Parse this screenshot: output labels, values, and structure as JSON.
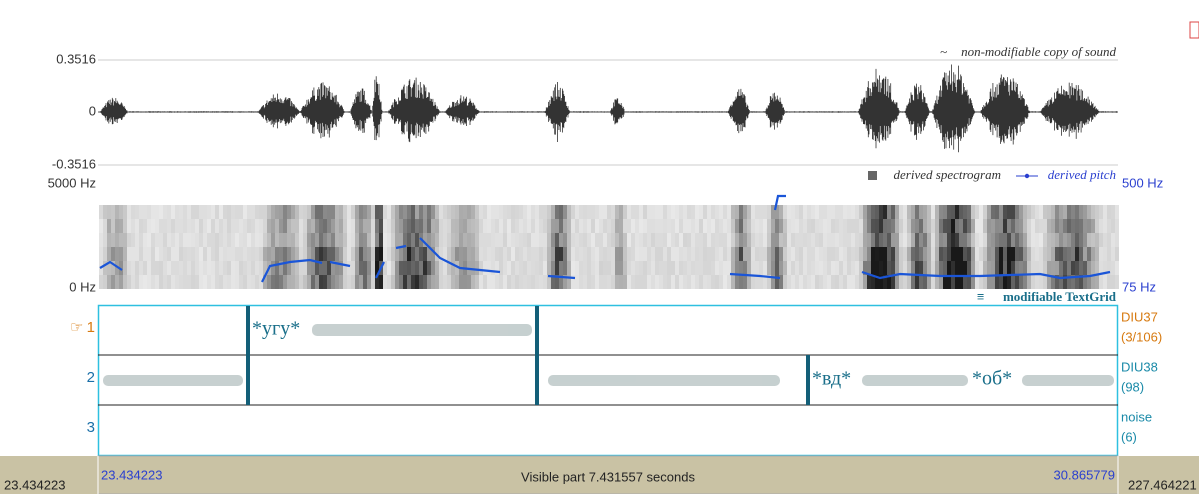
{
  "waveform": {
    "max_label": "0.3516",
    "zero_label": "0",
    "min_label": "-0.3516",
    "caption": "non-modifiable copy of sound"
  },
  "spectrogram": {
    "top_label": "5000 Hz",
    "bottom_label": "0 Hz",
    "legend_spectrogram": "derived spectrogram",
    "legend_pitch": "derived pitch",
    "pitch_top_label": "500 Hz",
    "pitch_bottom_label": "75 Hz"
  },
  "textgrid_caption": "modifiable TextGrid",
  "tiers": [
    {
      "number": "1",
      "name": "DIU37",
      "count": "(3/106)",
      "intervals": [
        "*угу*"
      ]
    },
    {
      "number": "2",
      "name": "DIU38",
      "count": "(98)",
      "intervals": [
        "*вд*",
        "*об*"
      ]
    },
    {
      "number": "3",
      "name": "noise",
      "count": "(6)",
      "intervals": []
    }
  ],
  "footer": {
    "left_total": "23.434223",
    "visible_start": "23.434223",
    "visible_label": "Visible part 7.431557 seconds",
    "visible_end": "30.865779",
    "right_total": "227.464221"
  }
}
